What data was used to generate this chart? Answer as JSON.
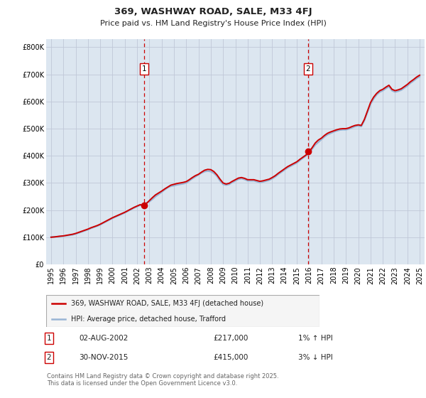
{
  "title": "369, WASHWAY ROAD, SALE, M33 4FJ",
  "subtitle": "Price paid vs. HM Land Registry's House Price Index (HPI)",
  "background_color": "#ffffff",
  "plot_bg_color": "#dce6f0",
  "grid_color": "#c0c8d8",
  "hpi_line_color": "#99b4d4",
  "price_line_color": "#cc0000",
  "marker_color": "#cc0000",
  "vline_color": "#cc0000",
  "ylim": [
    0,
    830000
  ],
  "yticks": [
    0,
    100000,
    200000,
    300000,
    400000,
    500000,
    600000,
    700000,
    800000
  ],
  "ytick_labels": [
    "£0",
    "£100K",
    "£200K",
    "£300K",
    "£400K",
    "£500K",
    "£600K",
    "£700K",
    "£800K"
  ],
  "xlim_start": 1994.6,
  "xlim_end": 2025.4,
  "xticks": [
    1995,
    1996,
    1997,
    1998,
    1999,
    2000,
    2001,
    2002,
    2003,
    2004,
    2005,
    2006,
    2007,
    2008,
    2009,
    2010,
    2011,
    2012,
    2013,
    2014,
    2015,
    2016,
    2017,
    2018,
    2019,
    2020,
    2021,
    2022,
    2023,
    2024,
    2025
  ],
  "sale1_x": 2002.583,
  "sale1_y": 217000,
  "sale1_label": "1",
  "sale2_x": 2015.917,
  "sale2_y": 415000,
  "sale2_label": "2",
  "legend_line1": "369, WASHWAY ROAD, SALE, M33 4FJ (detached house)",
  "legend_line2": "HPI: Average price, detached house, Trafford",
  "annotation1_box_label": "1",
  "annotation1_date": "02-AUG-2002",
  "annotation1_price": "£217,000",
  "annotation1_hpi": "1% ↑ HPI",
  "annotation2_box_label": "2",
  "annotation2_date": "30-NOV-2015",
  "annotation2_price": "£415,000",
  "annotation2_hpi": "3% ↓ HPI",
  "footer": "Contains HM Land Registry data © Crown copyright and database right 2025.\nThis data is licensed under the Open Government Licence v3.0.",
  "hpi_data_x": [
    1995.0,
    1995.25,
    1995.5,
    1995.75,
    1996.0,
    1996.25,
    1996.5,
    1996.75,
    1997.0,
    1997.25,
    1997.5,
    1997.75,
    1998.0,
    1998.25,
    1998.5,
    1998.75,
    1999.0,
    1999.25,
    1999.5,
    1999.75,
    2000.0,
    2000.25,
    2000.5,
    2000.75,
    2001.0,
    2001.25,
    2001.5,
    2001.75,
    2002.0,
    2002.25,
    2002.5,
    2002.75,
    2003.0,
    2003.25,
    2003.5,
    2003.75,
    2004.0,
    2004.25,
    2004.5,
    2004.75,
    2005.0,
    2005.25,
    2005.5,
    2005.75,
    2006.0,
    2006.25,
    2006.5,
    2006.75,
    2007.0,
    2007.25,
    2007.5,
    2007.75,
    2008.0,
    2008.25,
    2008.5,
    2008.75,
    2009.0,
    2009.25,
    2009.5,
    2009.75,
    2010.0,
    2010.25,
    2010.5,
    2010.75,
    2011.0,
    2011.25,
    2011.5,
    2011.75,
    2012.0,
    2012.25,
    2012.5,
    2012.75,
    2013.0,
    2013.25,
    2013.5,
    2013.75,
    2014.0,
    2014.25,
    2014.5,
    2014.75,
    2015.0,
    2015.25,
    2015.5,
    2015.75,
    2016.0,
    2016.25,
    2016.5,
    2016.75,
    2017.0,
    2017.25,
    2017.5,
    2017.75,
    2018.0,
    2018.25,
    2018.5,
    2018.75,
    2019.0,
    2019.25,
    2019.5,
    2019.75,
    2020.0,
    2020.25,
    2020.5,
    2020.75,
    2021.0,
    2021.25,
    2021.5,
    2021.75,
    2022.0,
    2022.25,
    2022.5,
    2022.75,
    2023.0,
    2023.25,
    2023.5,
    2023.75,
    2024.0,
    2024.25,
    2024.5,
    2024.75,
    2025.0
  ],
  "hpi_data_y": [
    101000,
    101500,
    102000,
    103000,
    104000,
    105500,
    107000,
    109000,
    112000,
    116000,
    120000,
    124000,
    128000,
    133000,
    137000,
    141000,
    146000,
    152000,
    158000,
    164000,
    170000,
    175000,
    180000,
    185000,
    190000,
    196000,
    202000,
    208000,
    213000,
    218000,
    222000,
    226000,
    231000,
    240000,
    250000,
    258000,
    266000,
    275000,
    283000,
    288000,
    290000,
    293000,
    295000,
    297000,
    300000,
    308000,
    316000,
    323000,
    330000,
    337000,
    342000,
    344000,
    342000,
    336000,
    325000,
    308000,
    295000,
    292000,
    295000,
    302000,
    308000,
    314000,
    316000,
    313000,
    308000,
    308000,
    308000,
    305000,
    302000,
    304000,
    307000,
    310000,
    316000,
    323000,
    332000,
    340000,
    348000,
    356000,
    362000,
    368000,
    374000,
    383000,
    392000,
    400000,
    408000,
    425000,
    440000,
    450000,
    460000,
    470000,
    478000,
    483000,
    488000,
    492000,
    495000,
    496000,
    496000,
    499000,
    504000,
    508000,
    510000,
    508000,
    530000,
    560000,
    590000,
    610000,
    625000,
    635000,
    640000,
    648000,
    655000,
    640000,
    635000,
    638000,
    642000,
    650000,
    658000,
    668000,
    676000,
    685000,
    692000
  ],
  "price_data_x": [
    1995.0,
    1995.25,
    1995.5,
    1995.75,
    1996.0,
    1996.25,
    1996.5,
    1996.75,
    1997.0,
    1997.25,
    1997.5,
    1997.75,
    1998.0,
    1998.25,
    1998.5,
    1998.75,
    1999.0,
    1999.25,
    1999.5,
    1999.75,
    2000.0,
    2000.25,
    2000.5,
    2000.75,
    2001.0,
    2001.25,
    2001.5,
    2001.75,
    2002.0,
    2002.25,
    2002.5,
    2002.75,
    2003.0,
    2003.25,
    2003.5,
    2003.75,
    2004.0,
    2004.25,
    2004.5,
    2004.75,
    2005.0,
    2005.25,
    2005.5,
    2005.75,
    2006.0,
    2006.25,
    2006.5,
    2006.75,
    2007.0,
    2007.25,
    2007.5,
    2007.75,
    2008.0,
    2008.25,
    2008.5,
    2008.75,
    2009.0,
    2009.25,
    2009.5,
    2009.75,
    2010.0,
    2010.25,
    2010.5,
    2010.75,
    2011.0,
    2011.25,
    2011.5,
    2011.75,
    2012.0,
    2012.25,
    2012.5,
    2012.75,
    2013.0,
    2013.25,
    2013.5,
    2013.75,
    2014.0,
    2014.25,
    2014.5,
    2014.75,
    2015.0,
    2015.25,
    2015.5,
    2015.75,
    2016.0,
    2016.25,
    2016.5,
    2016.75,
    2017.0,
    2017.25,
    2017.5,
    2017.75,
    2018.0,
    2018.25,
    2018.5,
    2018.75,
    2019.0,
    2019.25,
    2019.5,
    2019.75,
    2020.0,
    2020.25,
    2020.5,
    2020.75,
    2021.0,
    2021.25,
    2021.5,
    2021.75,
    2022.0,
    2022.25,
    2022.5,
    2022.75,
    2023.0,
    2023.25,
    2023.5,
    2023.75,
    2024.0,
    2024.25,
    2024.5,
    2024.75,
    2025.0
  ],
  "price_data_y": [
    100000,
    101000,
    102500,
    104000,
    105000,
    107000,
    109000,
    111000,
    114000,
    118000,
    122000,
    126000,
    130000,
    135000,
    139000,
    143000,
    148000,
    154000,
    160000,
    166000,
    172000,
    177000,
    182000,
    187000,
    192000,
    198000,
    204000,
    210000,
    215000,
    220000,
    217000,
    224000,
    235000,
    246000,
    256000,
    263000,
    270000,
    278000,
    285000,
    292000,
    295000,
    298000,
    300000,
    302000,
    305000,
    312000,
    320000,
    327000,
    332000,
    340000,
    347000,
    350000,
    349000,
    342000,
    330000,
    314000,
    300000,
    296000,
    299000,
    306000,
    312000,
    318000,
    320000,
    317000,
    312000,
    312000,
    312000,
    309000,
    306000,
    308000,
    311000,
    314000,
    320000,
    327000,
    336000,
    344000,
    352000,
    360000,
    366000,
    372000,
    378000,
    387000,
    395000,
    403000,
    415000,
    430000,
    447000,
    458000,
    465000,
    475000,
    483000,
    488000,
    492000,
    496000,
    499000,
    500000,
    500000,
    503000,
    508000,
    512000,
    514000,
    512000,
    534000,
    565000,
    596000,
    616000,
    630000,
    640000,
    645000,
    653000,
    660000,
    645000,
    640000,
    643000,
    647000,
    655000,
    663000,
    673000,
    681000,
    690000,
    697000
  ]
}
